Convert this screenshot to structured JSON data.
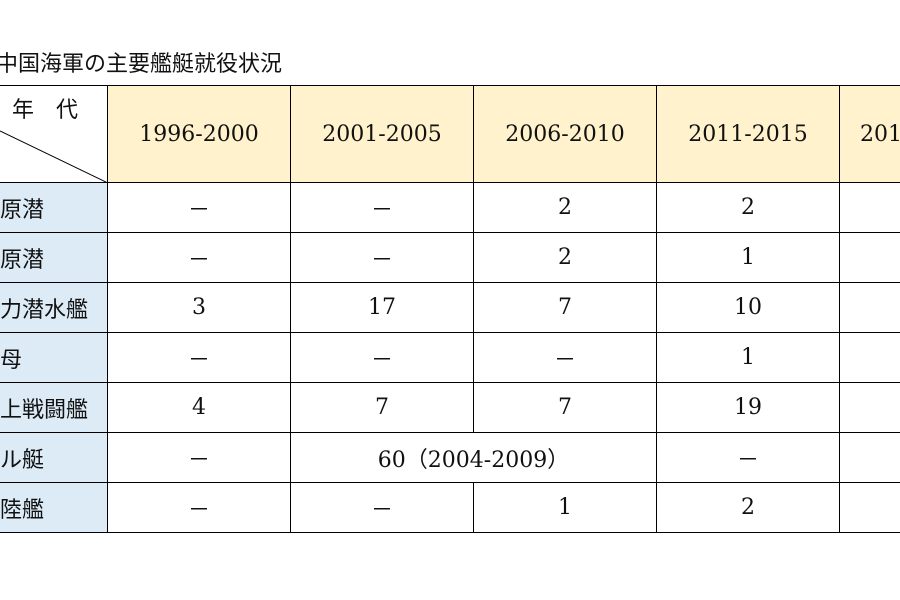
{
  "title": "中国海軍の主要艦艇就役状況",
  "table": {
    "corner": "年　代",
    "columns": [
      "1996-2000",
      "2001-2005",
      "2006-2010",
      "2011-2015",
      "201"
    ],
    "rows": [
      [
        "原潜",
        "－",
        "－",
        2,
        2
      ],
      [
        "原潜",
        "－",
        "－",
        2,
        1
      ],
      [
        "力潜水艦",
        3,
        17,
        7,
        10
      ],
      [
        "母",
        "－",
        "－",
        "－",
        1
      ],
      [
        "上戦闘艦",
        4,
        7,
        7,
        19
      ],
      [
        "ル艇",
        "－",
        "60（2004-2009）",
        "－"
      ],
      [
        "陸艦",
        "－",
        "－",
        1,
        2
      ]
    ]
  }
}
